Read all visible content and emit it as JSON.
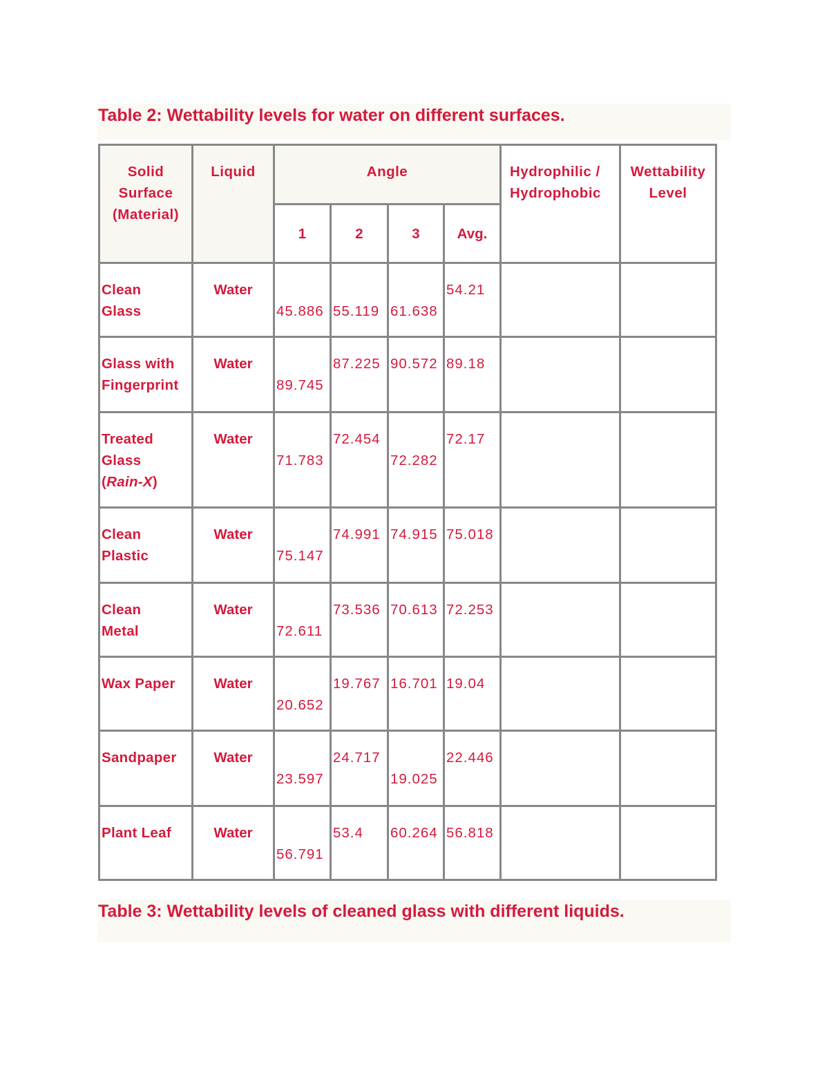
{
  "table2": {
    "caption": "Table 2: Wettability levels for water on different surfaces.",
    "headers": {
      "solid_surface": [
        "Solid",
        "Surface",
        "(Material)"
      ],
      "liquid": "Liquid",
      "angle": "Angle",
      "angle_sub": [
        "1",
        "2",
        "3",
        "Avg."
      ],
      "hydro": [
        "Hydrophilic /",
        "Hydrophobic"
      ],
      "wettability": [
        "Wettability",
        "Level"
      ]
    },
    "rows": [
      {
        "surface": [
          "Clean",
          "Glass"
        ],
        "liquid": "Water",
        "a1": "45.886",
        "a2": "55.119",
        "a3": "61.638",
        "avg": "54.21",
        "hydro": "",
        "level": ""
      },
      {
        "surface": [
          "Glass with",
          "Fingerprint"
        ],
        "liquid": "Water",
        "a1": "89.745",
        "a2": "87.225",
        "a3": "90.572",
        "avg": "89.18",
        "hydro": "",
        "level": ""
      },
      {
        "surface": [
          "Treated",
          "Glass",
          "(",
          "Rain-X",
          ")"
        ],
        "liquid": "Water",
        "a1": "71.783",
        "a2": "72.454",
        "a3": "72.282",
        "avg": "72.17",
        "hydro": "",
        "level": ""
      },
      {
        "surface": [
          "Clean",
          "Plastic"
        ],
        "liquid": "Water",
        "a1": "75.147",
        "a2": "74.991",
        "a3": "74.915",
        "avg": "75.018",
        "hydro": "",
        "level": ""
      },
      {
        "surface": [
          "Clean",
          "Metal"
        ],
        "liquid": "Water",
        "a1": "72.611",
        "a2": "73.536",
        "a3": "70.613",
        "avg": "72.253",
        "hydro": "",
        "level": ""
      },
      {
        "surface": [
          "Wax Paper"
        ],
        "liquid": "Water",
        "a1": "20.652",
        "a2": "19.767",
        "a3": "16.701",
        "avg": "19.04",
        "hydro": "",
        "level": ""
      },
      {
        "surface": [
          "Sandpaper"
        ],
        "liquid": "Water",
        "a1": "23.597",
        "a2": "24.717",
        "a3": "19.025",
        "avg": "22.446",
        "hydro": "",
        "level": ""
      },
      {
        "surface": [
          "Plant Leaf"
        ],
        "liquid": "Water",
        "a1": "56.791",
        "a2": "53.4",
        "a3": "60.264",
        "avg": "56.818",
        "hydro": "",
        "level": ""
      }
    ]
  },
  "table3": {
    "caption": "Table 3: Wettability levels of cleaned glass with different liquids."
  },
  "colors": {
    "text": "#d41a3c",
    "header_bg": "#f8f7f2",
    "border": "#878787",
    "caption_bg": "#faf9f4"
  }
}
